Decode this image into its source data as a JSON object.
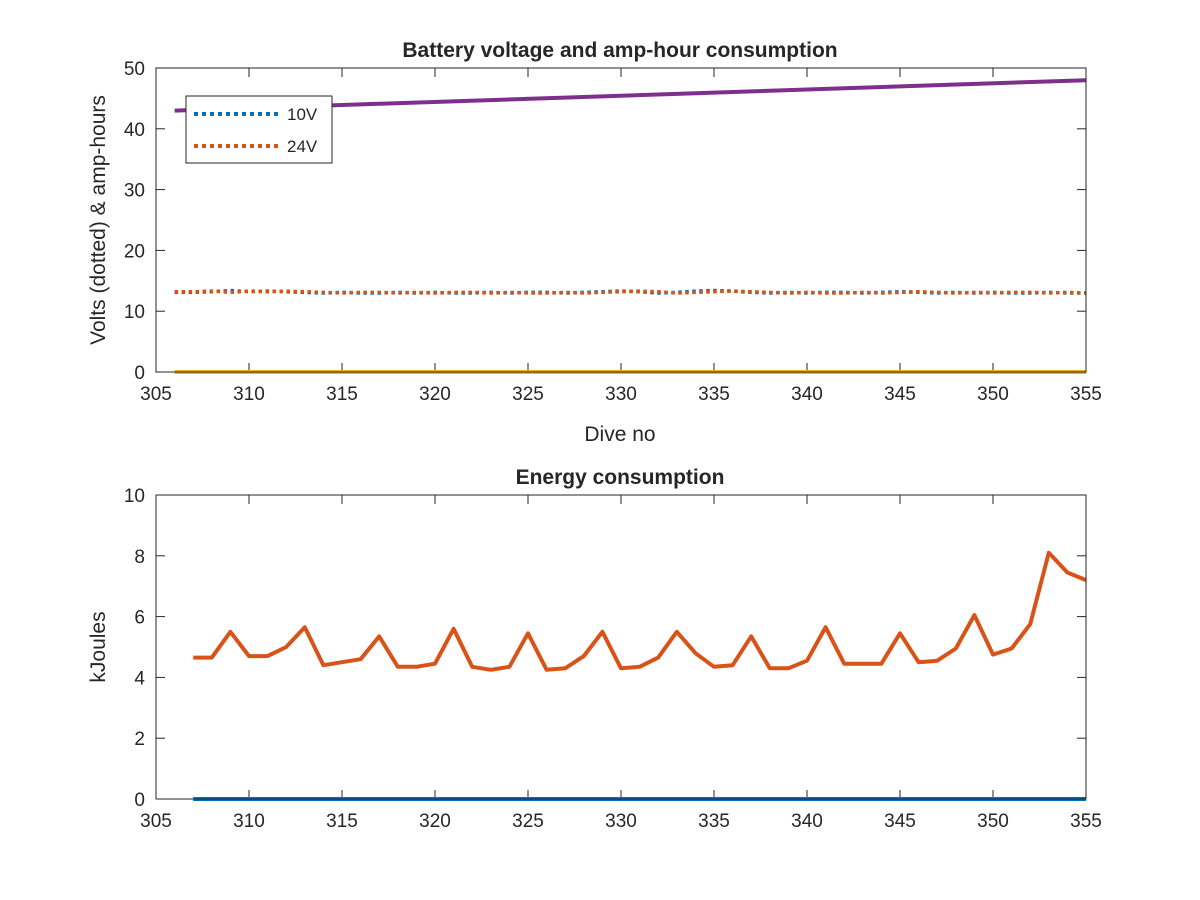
{
  "chart_data": [
    {
      "type": "line",
      "title": "Battery voltage and amp-hour consumption",
      "xlabel": "Dive no",
      "ylabel": "Volts (dotted) & amp-hours",
      "xlim": [
        305,
        355
      ],
      "ylim": [
        0,
        50
      ],
      "xticks": [
        305,
        310,
        315,
        320,
        325,
        330,
        335,
        340,
        345,
        350,
        355
      ],
      "yticks": [
        0,
        10,
        20,
        30,
        40,
        50
      ],
      "legend_position": "top-left",
      "series": [
        {
          "name": "10V",
          "style": "dotted",
          "color": "#0072bd",
          "x": [
            306,
            307,
            308,
            309,
            310,
            311,
            312,
            313,
            314,
            315,
            316,
            317,
            318,
            319,
            320,
            321,
            322,
            323,
            324,
            325,
            326,
            327,
            328,
            329,
            330,
            331,
            332,
            333,
            334,
            335,
            336,
            337,
            338,
            339,
            340,
            341,
            342,
            343,
            344,
            345,
            346,
            347,
            348,
            349,
            350,
            351,
            352,
            353,
            354,
            355
          ],
          "values": [
            13.1,
            13.1,
            13.2,
            13.4,
            13.2,
            13.3,
            13.2,
            13.1,
            13.0,
            13.1,
            13.0,
            13.0,
            13.1,
            13.0,
            13.1,
            13.0,
            13.0,
            13.1,
            13.0,
            13.1,
            13.1,
            13.0,
            13.1,
            13.2,
            13.3,
            13.2,
            13.0,
            13.1,
            13.3,
            13.4,
            13.3,
            13.1,
            13.0,
            13.1,
            13.0,
            13.1,
            13.1,
            13.0,
            13.1,
            13.2,
            13.1,
            13.0,
            13.1,
            13.0,
            13.1,
            13.0,
            13.0,
            13.1,
            13.0,
            13.0
          ]
        },
        {
          "name": "24V",
          "style": "dotted",
          "color": "#d95319",
          "x": [
            306,
            307,
            308,
            309,
            310,
            311,
            312,
            313,
            314,
            315,
            316,
            317,
            318,
            319,
            320,
            321,
            322,
            323,
            324,
            325,
            326,
            327,
            328,
            329,
            330,
            331,
            332,
            333,
            334,
            335,
            336,
            337,
            338,
            339,
            340,
            341,
            342,
            343,
            344,
            345,
            346,
            347,
            348,
            349,
            350,
            351,
            352,
            353,
            354,
            355
          ],
          "values": [
            13.2,
            13.2,
            13.3,
            13.1,
            13.3,
            13.2,
            13.3,
            13.2,
            13.1,
            13.0,
            13.1,
            13.1,
            13.0,
            13.1,
            13.0,
            13.1,
            13.1,
            13.0,
            13.1,
            13.0,
            13.0,
            13.1,
            13.0,
            13.1,
            13.2,
            13.3,
            13.2,
            13.0,
            13.1,
            13.2,
            13.3,
            13.2,
            13.1,
            13.0,
            13.1,
            13.0,
            13.0,
            13.1,
            13.0,
            13.1,
            13.2,
            13.1,
            13.0,
            13.1,
            13.0,
            13.1,
            13.1,
            13.0,
            13.1,
            13.0
          ]
        },
        {
          "style": "solid",
          "color": "#edb120",
          "x": [
            306,
            355
          ],
          "values": [
            0,
            0
          ]
        },
        {
          "style": "solid",
          "color": "#7e2f8e",
          "x": [
            306,
            355
          ],
          "values": [
            43,
            48
          ]
        }
      ]
    },
    {
      "type": "line",
      "title": "Energy consumption",
      "xlabel": "",
      "ylabel": "kJoules",
      "xlim": [
        305,
        355
      ],
      "ylim": [
        0,
        10
      ],
      "xticks": [
        305,
        310,
        315,
        320,
        325,
        330,
        335,
        340,
        345,
        350,
        355
      ],
      "yticks": [
        0,
        2,
        4,
        6,
        8,
        10
      ],
      "series": [
        {
          "style": "solid",
          "color": "#0072bd",
          "x": [
            307,
            355
          ],
          "values": [
            0,
            0
          ]
        },
        {
          "style": "solid",
          "color": "#d95319",
          "x": [
            307,
            308,
            309,
            310,
            311,
            312,
            313,
            314,
            315,
            316,
            317,
            318,
            319,
            320,
            321,
            322,
            323,
            324,
            325,
            326,
            327,
            328,
            329,
            330,
            331,
            332,
            333,
            334,
            335,
            336,
            337,
            338,
            339,
            340,
            341,
            342,
            343,
            344,
            345,
            346,
            347,
            348,
            349,
            350,
            351,
            352,
            353,
            354,
            355
          ],
          "values": [
            4.65,
            4.65,
            5.5,
            4.7,
            4.7,
            5.0,
            5.65,
            4.4,
            4.5,
            4.6,
            5.35,
            4.35,
            4.35,
            4.45,
            5.6,
            4.35,
            4.25,
            4.35,
            5.45,
            4.25,
            4.3,
            4.7,
            5.5,
            4.3,
            4.35,
            4.65,
            5.5,
            4.8,
            4.35,
            4.4,
            5.35,
            4.3,
            4.3,
            4.55,
            5.65,
            4.45,
            4.45,
            4.45,
            5.45,
            4.5,
            4.55,
            4.95,
            6.05,
            4.75,
            4.95,
            5.75,
            8.1,
            7.45,
            7.2
          ]
        }
      ]
    }
  ]
}
